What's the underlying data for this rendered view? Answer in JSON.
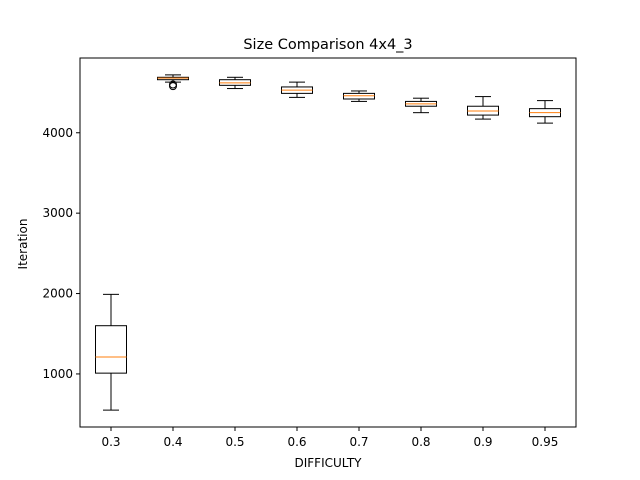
{
  "chart_data": {
    "type": "box",
    "title": "Size Comparison 4x4_3",
    "xlabel": "DIFFICULTY",
    "ylabel": "Iteration",
    "ylim": [
      340,
      4930
    ],
    "yticks": [
      1000,
      2000,
      3000,
      4000
    ],
    "grid": false,
    "legend": "none",
    "colors": {
      "box": "#000000",
      "median": "#ff7f0e",
      "flier": "#000000",
      "background": "#ffffff"
    },
    "categories": [
      "0.3",
      "0.4",
      "0.5",
      "0.6",
      "0.7",
      "0.8",
      "0.9",
      "0.95"
    ],
    "boxes": [
      {
        "category": "0.3",
        "whislo": 550,
        "q1": 1010,
        "med": 1210,
        "q3": 1600,
        "whishi": 1990,
        "fliers": []
      },
      {
        "category": "0.4",
        "whislo": 4630,
        "q1": 4660,
        "med": 4680,
        "q3": 4690,
        "whishi": 4720,
        "fliers": [
          4600,
          4580
        ]
      },
      {
        "category": "0.5",
        "whislo": 4550,
        "q1": 4590,
        "med": 4620,
        "q3": 4660,
        "whishi": 4690,
        "fliers": []
      },
      {
        "category": "0.6",
        "whislo": 4440,
        "q1": 4490,
        "med": 4530,
        "q3": 4570,
        "whishi": 4630,
        "fliers": []
      },
      {
        "category": "0.7",
        "whislo": 4390,
        "q1": 4420,
        "med": 4460,
        "q3": 4490,
        "whishi": 4520,
        "fliers": []
      },
      {
        "category": "0.8",
        "whislo": 4250,
        "q1": 4330,
        "med": 4360,
        "q3": 4390,
        "whishi": 4430,
        "fliers": []
      },
      {
        "category": "0.9",
        "whislo": 4170,
        "q1": 4220,
        "med": 4270,
        "q3": 4330,
        "whishi": 4450,
        "fliers": []
      },
      {
        "category": "0.95",
        "whislo": 4120,
        "q1": 4200,
        "med": 4250,
        "q3": 4300,
        "whishi": 4400,
        "fliers": []
      }
    ]
  }
}
